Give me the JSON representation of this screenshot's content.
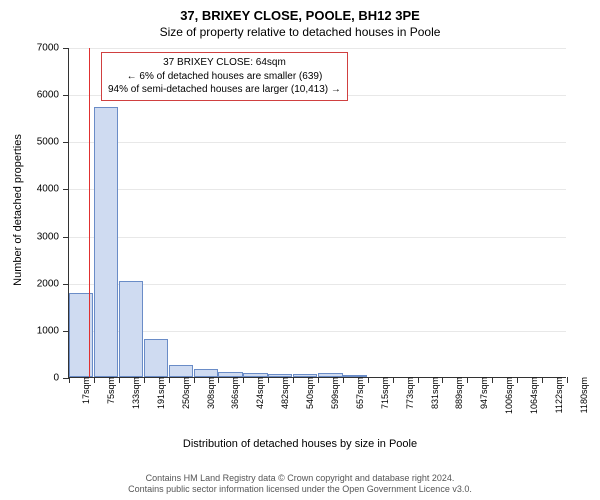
{
  "title_main": "37, BRIXEY CLOSE, POOLE, BH12 3PE",
  "title_sub": "Size of property relative to detached houses in Poole",
  "chart": {
    "type": "histogram",
    "bar_fill": "#cfdbf1",
    "bar_stroke": "#6a8cc7",
    "background_color": "#ffffff",
    "grid_color": "#e8e8e8",
    "marker_color": "#e03030",
    "ylabel": "Number of detached properties",
    "xlabel": "Distribution of detached houses by size in Poole",
    "ylim": [
      0,
      7000
    ],
    "ytick_step": 1000,
    "yticks": [
      0,
      1000,
      2000,
      3000,
      4000,
      5000,
      6000,
      7000
    ],
    "x_start": 17,
    "xtick_step": 58,
    "xticks": [
      17,
      75,
      133,
      191,
      250,
      308,
      366,
      424,
      482,
      540,
      599,
      657,
      715,
      773,
      831,
      889,
      947,
      1006,
      1064,
      1122,
      1180
    ],
    "xtick_unit": "sqm",
    "bar_xstarts": [
      17,
      75,
      133,
      191,
      250,
      308,
      366,
      424,
      482,
      540,
      599,
      657,
      715,
      773,
      831,
      889,
      947,
      1006,
      1064,
      1122
    ],
    "values": [
      1780,
      5720,
      2030,
      800,
      260,
      160,
      100,
      80,
      60,
      70,
      80,
      30,
      0,
      0,
      0,
      0,
      0,
      0,
      0,
      0
    ],
    "marker_x": 64,
    "label_fontsize": 11,
    "tick_fontsize": 10
  },
  "annotation": {
    "line1": "37 BRIXEY CLOSE: 64sqm",
    "line2": "← 6% of detached houses are smaller (639)",
    "line3": "94% of semi-detached houses are larger (10,413) →",
    "border_color": "#d04040",
    "fontsize": 10
  },
  "footer": {
    "line1": "Contains HM Land Registry data © Crown copyright and database right 2024.",
    "line2": "Contains public sector information licensed under the Open Government Licence v3.0."
  }
}
